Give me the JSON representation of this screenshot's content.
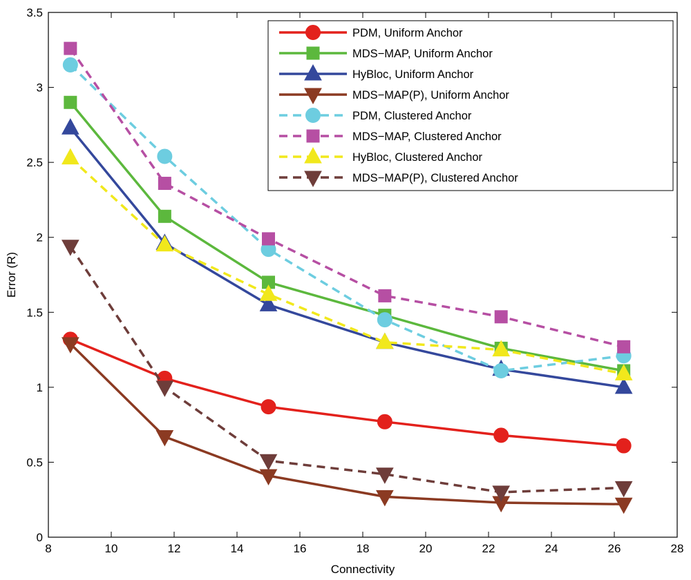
{
  "chart_data": {
    "type": "line",
    "title": "",
    "xlabel": "Connectivity",
    "ylabel": "Error (R)",
    "xlim": [
      8,
      28
    ],
    "ylim": [
      0,
      3.5
    ],
    "xticks": [
      "8",
      "10",
      "12",
      "14",
      "16",
      "18",
      "20",
      "22",
      "24",
      "26",
      "28"
    ],
    "yticks": [
      "0",
      "0.5",
      "1",
      "1.5",
      "2",
      "2.5",
      "3",
      "3.5"
    ],
    "grid": false,
    "legend_position": "top-right",
    "x": [
      8.7,
      11.7,
      15.0,
      18.7,
      22.4,
      26.3
    ],
    "series": [
      {
        "name": "PDM, Uniform Anchor",
        "color": "#e3211c",
        "dash": "solid",
        "marker": "circle",
        "values": [
          1.32,
          1.06,
          0.87,
          0.77,
          0.68,
          0.61
        ]
      },
      {
        "name": "MDS−MAP, Uniform Anchor",
        "color": "#5cb83d",
        "dash": "solid",
        "marker": "square",
        "values": [
          2.9,
          2.14,
          1.7,
          1.48,
          1.26,
          1.11
        ]
      },
      {
        "name": "HyBloc, Uniform Anchor",
        "color": "#34489c",
        "dash": "solid",
        "marker": "triangle-up",
        "values": [
          2.73,
          1.96,
          1.55,
          1.3,
          1.12,
          1.0
        ]
      },
      {
        "name": "MDS−MAP(P), Uniform Anchor",
        "color": "#8b3a22",
        "dash": "solid",
        "marker": "triangle-down",
        "values": [
          1.29,
          0.67,
          0.41,
          0.27,
          0.23,
          0.22
        ]
      },
      {
        "name": "PDM, Clustered Anchor",
        "color": "#6dcde0",
        "dash": "dashed",
        "marker": "circle",
        "values": [
          3.15,
          2.54,
          1.92,
          1.45,
          1.11,
          1.21
        ]
      },
      {
        "name": "MDS−MAP, Clustered Anchor",
        "color": "#b64fa3",
        "dash": "dashed",
        "marker": "square",
        "values": [
          3.26,
          2.36,
          1.99,
          1.61,
          1.47,
          1.27
        ]
      },
      {
        "name": "HyBloc, Clustered Anchor",
        "color": "#f1e81c",
        "dash": "dashed",
        "marker": "triangle-up",
        "values": [
          2.53,
          1.95,
          1.62,
          1.3,
          1.25,
          1.09
        ]
      },
      {
        "name": "MDS−MAP(P), Clustered Anchor",
        "color": "#6e3d3a",
        "dash": "dashed",
        "marker": "triangle-down",
        "values": [
          1.94,
          1.0,
          0.51,
          0.42,
          0.3,
          0.33
        ]
      }
    ]
  }
}
